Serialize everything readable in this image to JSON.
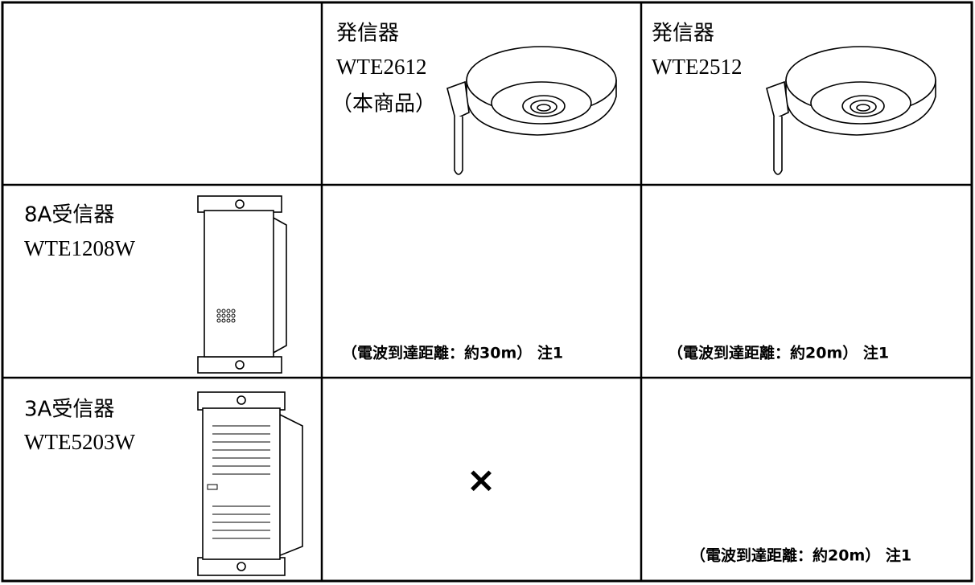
{
  "table": {
    "header": [
      {
        "lines": [
          "発信器",
          "WTE2612",
          "（本商品）"
        ]
      },
      {
        "lines": [
          "発信器",
          "WTE2512"
        ]
      }
    ],
    "rows": [
      {
        "label": [
          "8A受信器",
          "WTE1208W"
        ],
        "cells": [
          "（電波到達距離：約30m） 注1",
          "（電波到達距離：約20m） 注1"
        ]
      },
      {
        "label": [
          "3A受信器",
          "WTE5203W"
        ],
        "cells": [
          "×",
          "（電波到達距離：約20m） 注1"
        ]
      }
    ]
  }
}
